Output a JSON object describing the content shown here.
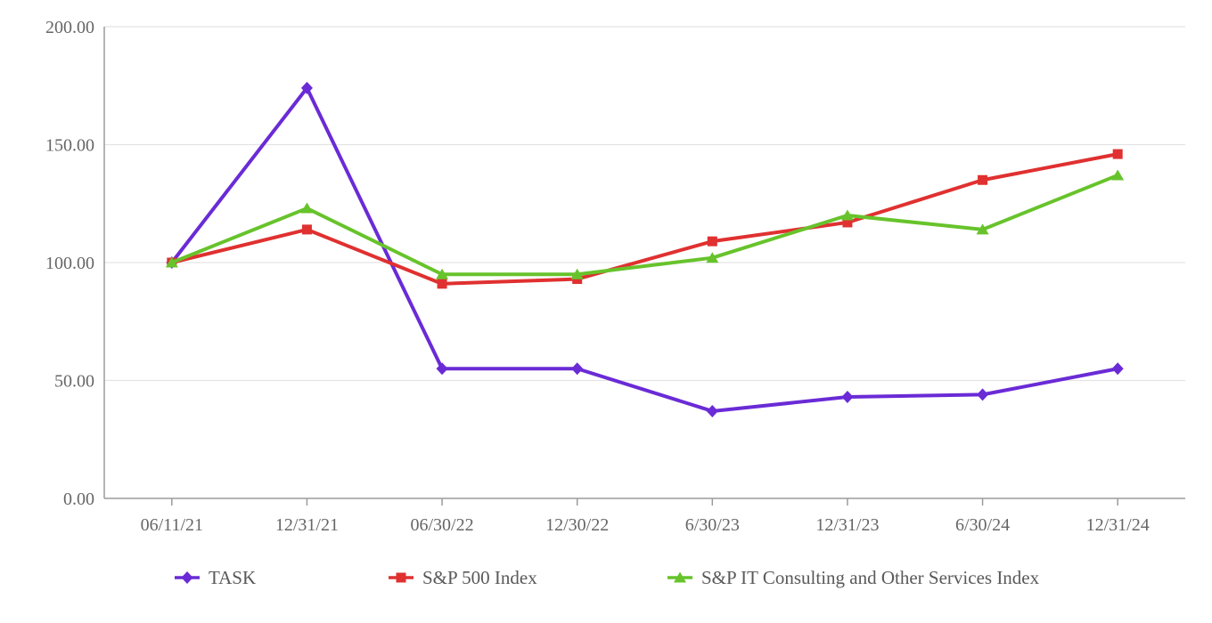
{
  "chart_data": {
    "type": "line",
    "categories": [
      "06/11/21",
      "12/31/21",
      "06/30/22",
      "12/30/22",
      "6/30/23",
      "12/31/23",
      "6/30/24",
      "12/31/24"
    ],
    "series": [
      {
        "name": "TASK",
        "marker": "diamond",
        "color": "#6A2BD6",
        "values": [
          100,
          174,
          55,
          55,
          37,
          43,
          44,
          55
        ]
      },
      {
        "name": "S&P 500 Index",
        "marker": "square",
        "color": "#E03030",
        "values": [
          100,
          114,
          91,
          93,
          109,
          117,
          135,
          146
        ]
      },
      {
        "name": "S&P IT Consulting and Other Services Index",
        "marker": "triangle",
        "color": "#67C32B",
        "values": [
          100,
          123,
          95,
          95,
          102,
          120,
          114,
          137
        ]
      }
    ],
    "y_axis": {
      "min": 0,
      "max": 200,
      "step": 50,
      "tick_labels": [
        "0.00",
        "50.00",
        "100.00",
        "150.00",
        "200.00"
      ]
    },
    "grid": true,
    "legend_position": "bottom",
    "colors": {
      "gridline": "#E4E4E4",
      "axis_line": "#9B9B9B",
      "tick_text": "#666666",
      "legend_text": "#595959",
      "background": "#FFFFFF"
    }
  }
}
